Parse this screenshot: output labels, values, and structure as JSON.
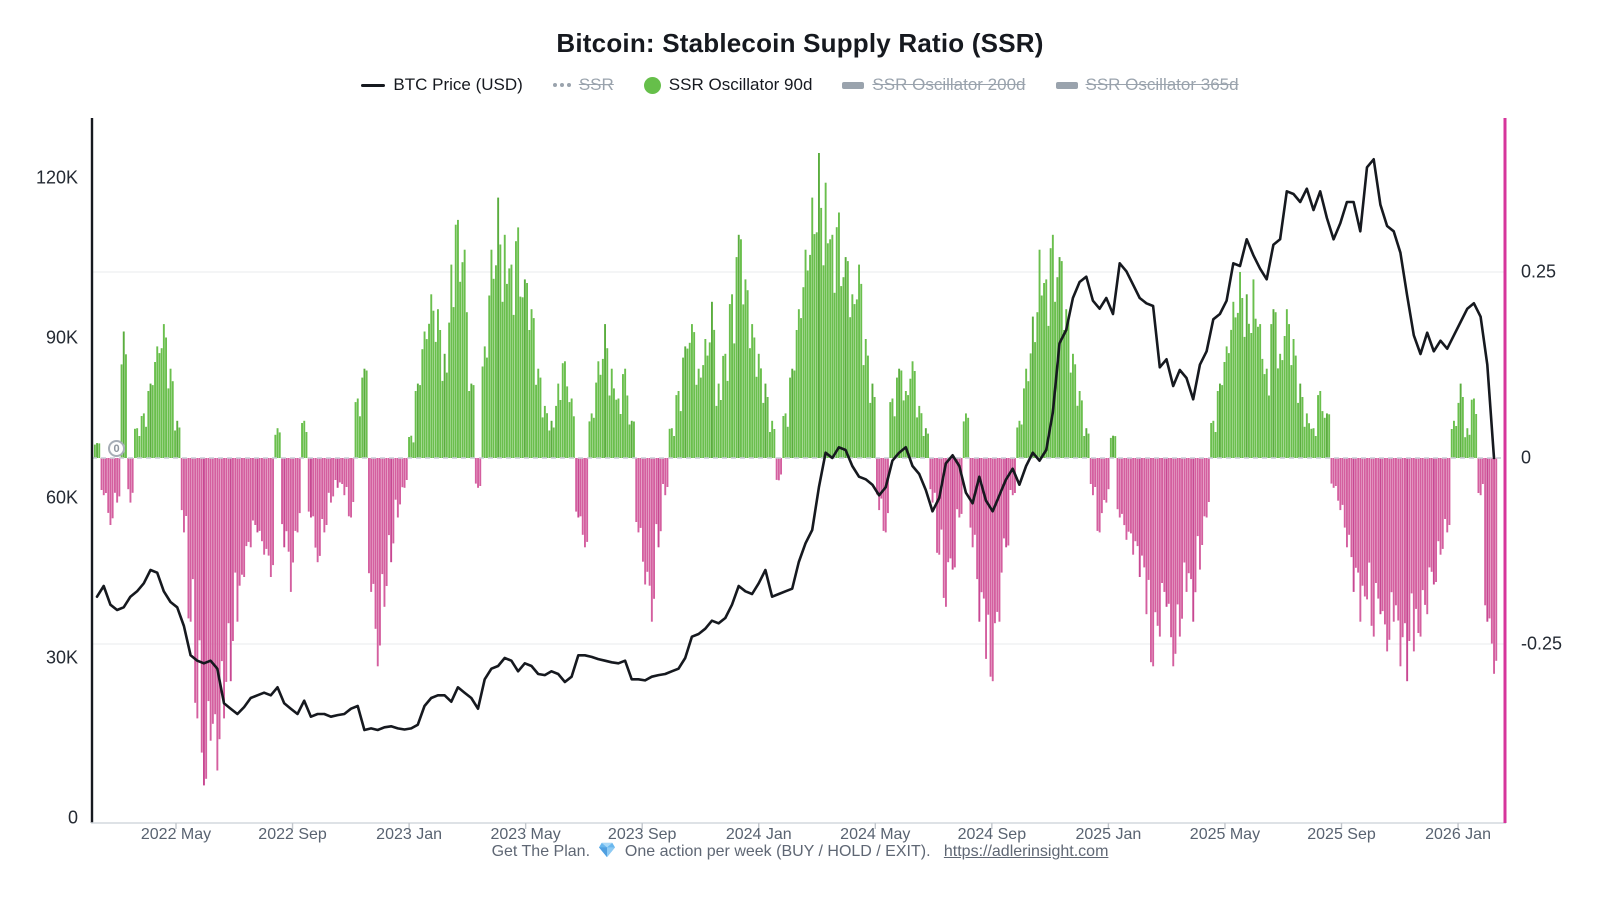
{
  "title": "Bitcoin: Stablecoin Supply Ratio (SSR)",
  "legend": [
    {
      "label": "BTC Price (USD)",
      "marker": "line",
      "color": "#16191f",
      "disabled": false
    },
    {
      "label": "SSR",
      "marker": "dotted",
      "color": "#9aa3ad",
      "disabled": true
    },
    {
      "label": "SSR Oscillator 90d",
      "marker": "circle",
      "color": "#66bf4a",
      "disabled": false
    },
    {
      "label": "SSR Oscillator 200d",
      "marker": "thick",
      "color": "#9aa3ad",
      "disabled": true
    },
    {
      "label": "SSR Oscillator 365d",
      "marker": "thick",
      "color": "#9aa3ad",
      "disabled": true
    }
  ],
  "y_left_labels": [
    {
      "text": "0",
      "value": 0
    },
    {
      "text": "30K",
      "value": 30
    },
    {
      "text": "60K",
      "value": 60
    },
    {
      "text": "90K",
      "value": 90
    },
    {
      "text": "120K",
      "value": 120
    }
  ],
  "y_right_labels": [
    {
      "text": "0.25",
      "value": 0.25
    },
    {
      "text": "0",
      "value": 0
    },
    {
      "text": "-0.25",
      "value": -0.25
    }
  ],
  "x_tick_labels": [
    "2022 May",
    "2022 Sep",
    "2023 Jan",
    "2023 May",
    "2023 Sep",
    "2024 Jan",
    "2024 May",
    "2024 Sep",
    "2025 Jan",
    "2025 May",
    "2025 Sep",
    "2026 Jan"
  ],
  "annotations": {
    "zero_badge": "0"
  },
  "footer": {
    "prefix": "Get The Plan.",
    "middle": "One action per week (BUY / HOLD / EXIT).",
    "link": "https://adlerinsight.com"
  },
  "chart_data": {
    "type": "combo",
    "x_start": "2022-02",
    "x_end": "2026-02",
    "sampling": "weekly",
    "grid": "horizontal-faint",
    "legend_position": "top-center",
    "axes": {
      "left": {
        "unit": "USD",
        "ticks": [
          0,
          30000,
          60000,
          90000,
          120000
        ],
        "color": "#16191f"
      },
      "right": {
        "unit": "oscillator",
        "ticks": [
          0.25,
          0,
          -0.25
        ],
        "color": "#d6359b"
      }
    },
    "colors": {
      "line": "#16191f",
      "bar_positive": "#6abf4d",
      "bar_positive_dark": "#5aad3e",
      "bar_negative": "#d45f9f",
      "bar_negative_dark": "#c84792",
      "right_axis": "#d6359b",
      "zero_dash": "#c9ced6",
      "gridline": "#f1f2f4"
    },
    "series": [
      {
        "name": "BTC Price (USD)",
        "type": "line",
        "unit": "K USD",
        "values": [
          41.5,
          43.5,
          40.0,
          39.0,
          39.5,
          41.5,
          42.5,
          44.0,
          46.5,
          46.0,
          42.5,
          40.5,
          39.5,
          36.0,
          30.5,
          29.5,
          29.0,
          29.5,
          28.0,
          21.5,
          20.5,
          19.5,
          20.8,
          22.5,
          23.0,
          23.5,
          23.0,
          24.5,
          21.5,
          20.5,
          19.5,
          22.0,
          19.0,
          19.5,
          19.5,
          19.0,
          19.3,
          19.5,
          20.5,
          21.0,
          16.5,
          16.8,
          16.5,
          17.0,
          17.2,
          16.8,
          16.6,
          16.8,
          17.5,
          21.0,
          22.5,
          23.0,
          23.0,
          21.8,
          24.5,
          23.5,
          22.5,
          20.5,
          26.0,
          28.0,
          28.5,
          30.0,
          29.5,
          27.5,
          29.0,
          28.5,
          27.0,
          26.8,
          27.5,
          27.0,
          25.5,
          26.5,
          30.5,
          30.5,
          30.2,
          29.8,
          29.5,
          29.2,
          29.0,
          29.5,
          26.0,
          26.0,
          25.8,
          26.5,
          26.8,
          27.0,
          27.5,
          28.0,
          30.0,
          34.0,
          34.5,
          35.5,
          37.0,
          36.5,
          37.5,
          40.0,
          43.5,
          42.5,
          42.0,
          44.0,
          46.5,
          41.5,
          42.0,
          42.5,
          43.0,
          48.0,
          51.5,
          54.0,
          62.0,
          68.5,
          67.5,
          69.5,
          69.0,
          66.0,
          64.0,
          63.5,
          62.5,
          60.5,
          62.0,
          67.0,
          68.5,
          69.5,
          66.0,
          64.5,
          61.5,
          57.5,
          60.0,
          66.5,
          68.0,
          66.0,
          61.0,
          59.0,
          64.0,
          59.5,
          57.5,
          60.5,
          63.5,
          65.5,
          62.5,
          66.0,
          68.5,
          67.0,
          69.0,
          76.0,
          89.0,
          91.5,
          97.5,
          100.5,
          101.5,
          97.0,
          95.5,
          97.5,
          94.5,
          104.0,
          102.5,
          100.0,
          97.5,
          96.5,
          96.0,
          84.5,
          86.0,
          81.0,
          84.0,
          82.5,
          78.5,
          85.0,
          87.5,
          93.5,
          94.5,
          97.0,
          104.0,
          103.5,
          108.5,
          105.5,
          103.0,
          101.0,
          107.5,
          108.5,
          117.5,
          117.0,
          115.5,
          118.0,
          114.0,
          117.5,
          112.5,
          108.5,
          111.5,
          115.5,
          115.5,
          110.0,
          122.0,
          123.5,
          115.0,
          111.0,
          110.0,
          106.0,
          98.0,
          90.5,
          87.0,
          91.0,
          87.5,
          89.5,
          88.0,
          90.5,
          93.0,
          95.5,
          96.5,
          94.0,
          85.0,
          67.5
        ]
      },
      {
        "name": "SSR Oscillator 90d",
        "type": "bar",
        "unit": "ratio",
        "values": [
          0.02,
          -0.05,
          -0.09,
          -0.06,
          0.17,
          -0.06,
          0.04,
          0.06,
          0.1,
          0.15,
          0.18,
          0.12,
          0.05,
          -0.1,
          -0.22,
          -0.35,
          -0.44,
          -0.38,
          -0.42,
          -0.35,
          -0.3,
          -0.22,
          -0.16,
          -0.12,
          -0.1,
          -0.13,
          -0.16,
          0.04,
          -0.12,
          -0.18,
          -0.1,
          0.05,
          -0.08,
          -0.14,
          -0.1,
          -0.06,
          -0.04,
          -0.05,
          -0.08,
          0.08,
          0.12,
          -0.18,
          -0.28,
          -0.2,
          -0.14,
          -0.08,
          -0.04,
          0.03,
          0.1,
          0.17,
          0.22,
          0.2,
          0.14,
          0.26,
          0.32,
          0.28,
          0.1,
          -0.04,
          0.15,
          0.28,
          0.35,
          0.3,
          0.26,
          0.31,
          0.24,
          0.2,
          0.12,
          0.07,
          0.05,
          0.1,
          0.13,
          0.08,
          -0.08,
          -0.12,
          0.06,
          0.13,
          0.18,
          0.12,
          0.08,
          0.12,
          0.05,
          -0.1,
          -0.17,
          -0.22,
          -0.12,
          -0.05,
          0.04,
          0.09,
          0.15,
          0.18,
          0.12,
          0.16,
          0.21,
          0.1,
          0.14,
          0.22,
          0.3,
          0.24,
          0.18,
          0.14,
          0.1,
          0.05,
          -0.03,
          0.06,
          0.12,
          0.2,
          0.28,
          0.35,
          0.41,
          0.37,
          0.3,
          0.33,
          0.27,
          0.22,
          0.26,
          0.16,
          0.1,
          -0.07,
          -0.1,
          0.08,
          0.12,
          0.09,
          0.13,
          0.07,
          0.04,
          -0.06,
          -0.13,
          -0.2,
          -0.15,
          -0.08,
          0.06,
          -0.12,
          -0.22,
          -0.27,
          -0.3,
          -0.22,
          -0.12,
          -0.05,
          0.05,
          0.12,
          0.19,
          0.28,
          0.24,
          0.3,
          0.27,
          0.2,
          0.14,
          0.09,
          0.04,
          -0.05,
          -0.1,
          -0.06,
          0.03,
          -0.08,
          -0.11,
          -0.13,
          -0.16,
          -0.21,
          -0.28,
          -0.24,
          -0.2,
          -0.28,
          -0.24,
          -0.18,
          -0.22,
          -0.15,
          -0.08,
          0.05,
          0.1,
          0.15,
          0.21,
          0.25,
          0.22,
          0.24,
          0.18,
          0.12,
          0.2,
          0.14,
          0.2,
          0.16,
          0.1,
          0.06,
          0.04,
          0.09,
          0.06,
          -0.04,
          -0.07,
          -0.12,
          -0.18,
          -0.22,
          -0.19,
          -0.24,
          -0.21,
          -0.26,
          -0.22,
          -0.28,
          -0.3,
          -0.26,
          -0.24,
          -0.21,
          -0.17,
          -0.13,
          -0.1,
          0.05,
          0.1,
          0.04,
          0.08,
          -0.05,
          -0.22,
          -0.29
        ]
      }
    ]
  }
}
